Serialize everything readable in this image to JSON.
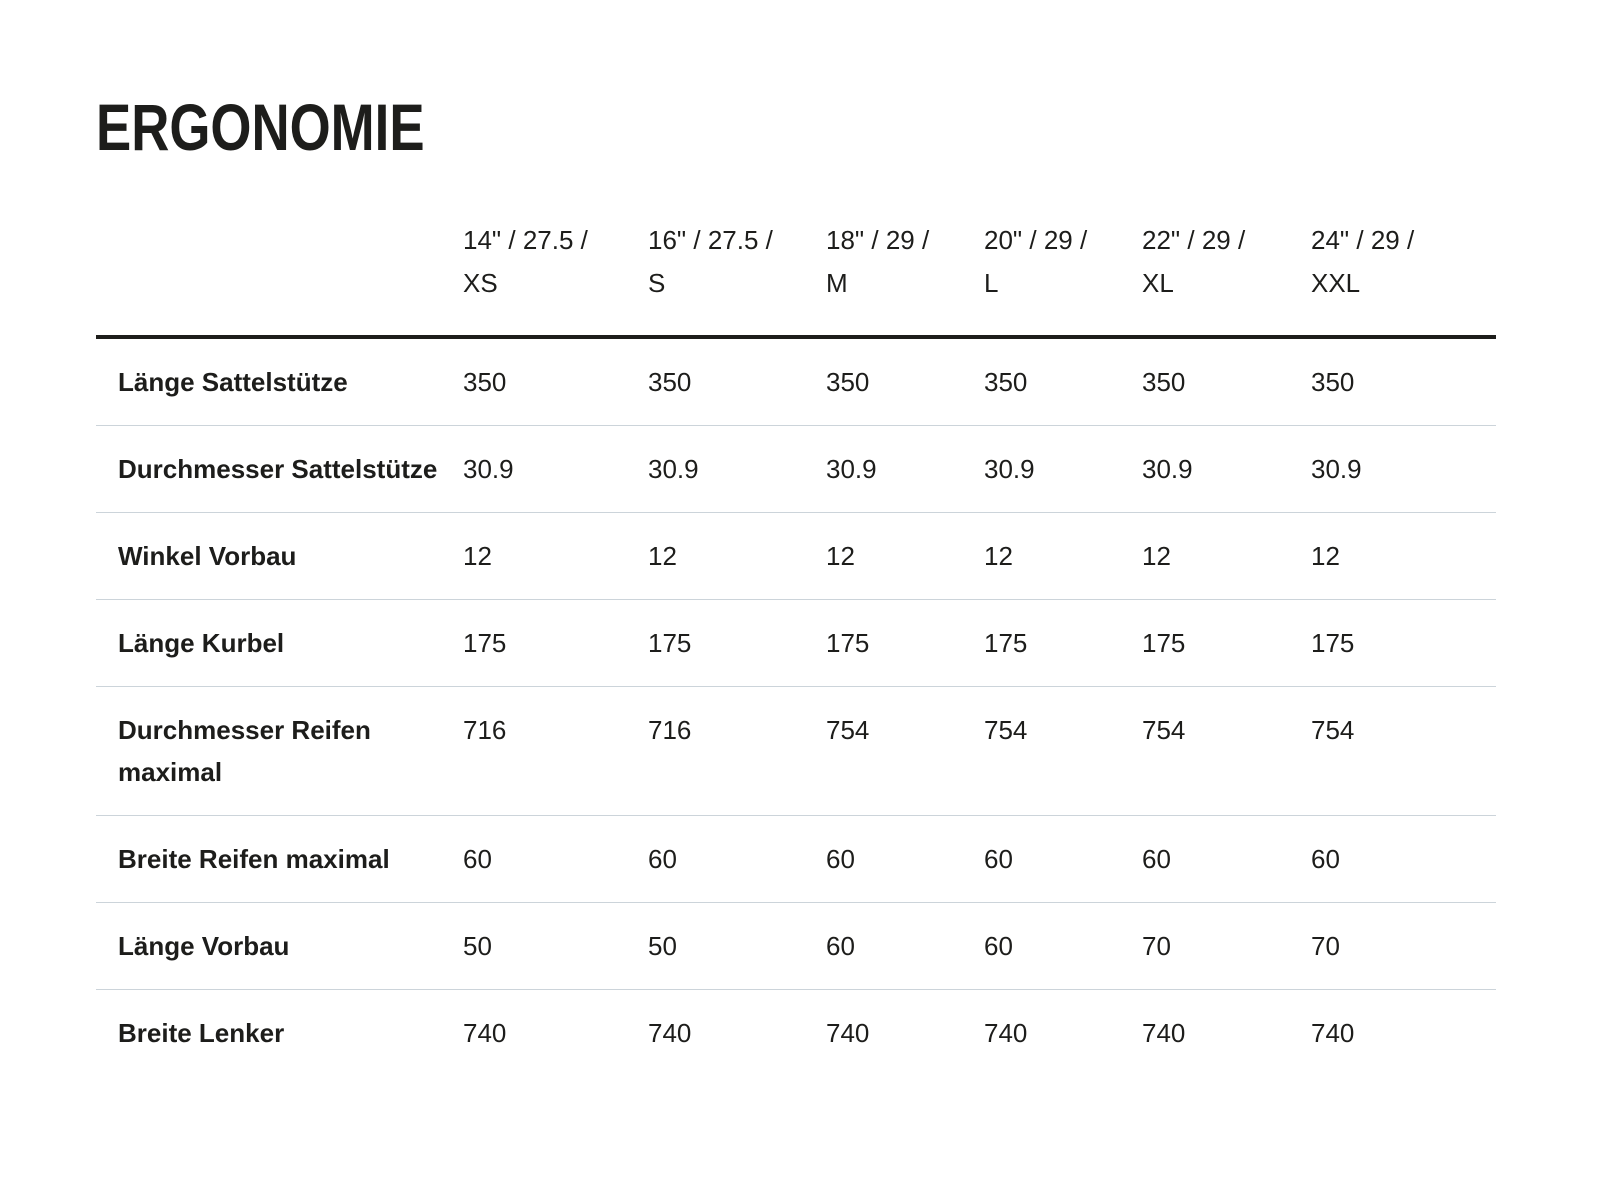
{
  "title": "ERGONOMIE",
  "colors": {
    "text": "#1d1d1b",
    "header_rule": "#1d1d1b",
    "row_divider": "#ccd4da",
    "background": "#ffffff"
  },
  "table": {
    "columns": [
      {
        "line1": "14\" / 27.5 /",
        "line2": "XS"
      },
      {
        "line1": "16\" / 27.5 /",
        "line2": "S"
      },
      {
        "line1": "18\" / 29 /",
        "line2": "M"
      },
      {
        "line1": "20\" / 29 /",
        "line2": "L"
      },
      {
        "line1": "22\" / 29 /",
        "line2": "XL"
      },
      {
        "line1": "24\" / 29 /",
        "line2": "XXL"
      }
    ],
    "rows": [
      {
        "label": "Länge Sattelstütze",
        "values": [
          "350",
          "350",
          "350",
          "350",
          "350",
          "350"
        ]
      },
      {
        "label": "Durchmesser Sattelstütze",
        "values": [
          "30.9",
          "30.9",
          "30.9",
          "30.9",
          "30.9",
          "30.9"
        ]
      },
      {
        "label": "Winkel Vorbau",
        "values": [
          "12",
          "12",
          "12",
          "12",
          "12",
          "12"
        ]
      },
      {
        "label": "Länge Kurbel",
        "values": [
          "175",
          "175",
          "175",
          "175",
          "175",
          "175"
        ]
      },
      {
        "label": "Durchmesser Reifen maximal",
        "values": [
          "716",
          "716",
          "754",
          "754",
          "754",
          "754"
        ]
      },
      {
        "label": "Breite Reifen maximal",
        "values": [
          "60",
          "60",
          "60",
          "60",
          "60",
          "60"
        ]
      },
      {
        "label": "Länge Vorbau",
        "values": [
          "50",
          "50",
          "60",
          "60",
          "70",
          "70"
        ]
      },
      {
        "label": "Breite Lenker",
        "values": [
          "740",
          "740",
          "740",
          "740",
          "740",
          "740"
        ]
      }
    ]
  }
}
